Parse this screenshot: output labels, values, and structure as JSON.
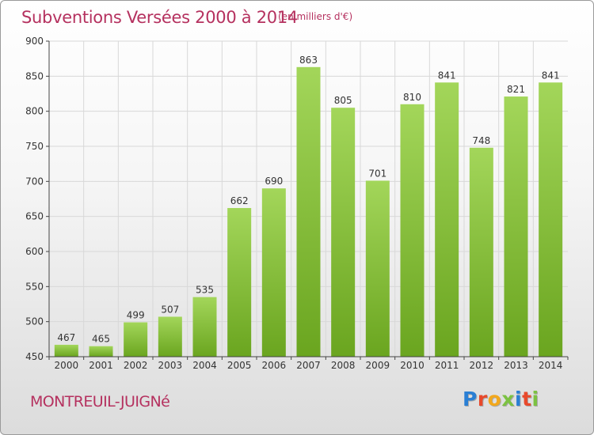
{
  "header": {
    "title": "Subventions Versées 2000 à 2014",
    "unit": "(en milliers d'€)"
  },
  "footer": {
    "commune": "MONTREUIL-JUIGNé",
    "logo": "Proxiti",
    "logo_letters": [
      {
        "char": "P",
        "color": "#2a7fd4"
      },
      {
        "char": "r",
        "color": "#e8492b"
      },
      {
        "char": "o",
        "color": "#f2a81d"
      },
      {
        "char": "x",
        "color": "#7cc242"
      },
      {
        "char": "i",
        "color": "#2a7fd4"
      },
      {
        "char": "t",
        "color": "#e8492b"
      },
      {
        "char": "i",
        "color": "#7cc242"
      }
    ]
  },
  "chart_data": {
    "type": "bar",
    "title": "Subventions Versées 2000 à 2014",
    "categories": [
      "2000",
      "2001",
      "2002",
      "2003",
      "2004",
      "2005",
      "2006",
      "2007",
      "2008",
      "2009",
      "2010",
      "2011",
      "2012",
      "2013",
      "2014"
    ],
    "values": [
      467,
      465,
      499,
      507,
      535,
      662,
      690,
      863,
      805,
      701,
      810,
      841,
      748,
      821,
      841
    ],
    "ylim": [
      450,
      900
    ],
    "yticks": [
      450,
      500,
      550,
      600,
      650,
      700,
      750,
      800,
      850,
      900
    ],
    "grid": true,
    "bar_color_top": "#a3d65a",
    "bar_color_bottom": "#6aa51f",
    "axis_color": "#444444"
  }
}
